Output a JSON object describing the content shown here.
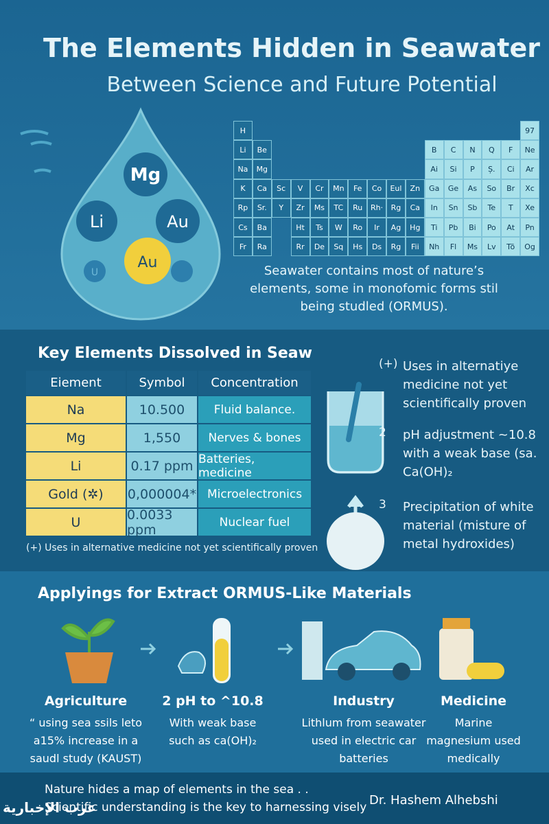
{
  "header": {
    "title": "The Elements Hidden in Seawater",
    "subtitle": "Between Science and Future Potential"
  },
  "drop": {
    "elements": [
      "Mg",
      "Li",
      "Au",
      "Au",
      "U"
    ]
  },
  "periodic_table": {
    "rows": [
      {
        "left": [
          "H"
        ],
        "right": [
          "97"
        ]
      },
      {
        "left": [
          "Li",
          "Be"
        ],
        "right": [
          "B",
          "C",
          "N",
          "Q",
          "F",
          "Ne"
        ]
      },
      {
        "left": [
          "Na",
          "Mg"
        ],
        "right": [
          "Ai",
          "Si",
          "P",
          "Ș.",
          "Ci",
          "Ar"
        ]
      },
      {
        "left": [
          "K",
          "Ca",
          "Sc",
          "V",
          "Cr",
          "Mn",
          "Fe",
          "Co",
          "Eul",
          "Zn",
          "Ga",
          "Ge",
          "As",
          "So",
          "Br",
          "Xc"
        ],
        "right": []
      },
      {
        "left": [
          "Rp",
          "Sr.",
          "Y",
          "Zr",
          "Ms",
          "TC",
          "Ru",
          "Rh·",
          "Rg",
          "Ca",
          "In",
          "Sn",
          "Sb",
          "Te",
          "T",
          "Xe"
        ],
        "right": []
      },
      {
        "left": [
          "Cs",
          "Ba"
        ],
        "right": [
          "Ht",
          "Ts",
          "W",
          "Ro",
          "Ir",
          "Ag",
          "Hg",
          "Ti",
          "Pb",
          "Bi",
          "Po",
          "At",
          "Pn"
        ]
      },
      {
        "left": [
          "Fr",
          "Ra"
        ],
        "right": [
          "Rr",
          "De",
          "Sq",
          "Hs",
          "Ds",
          "Rg",
          "Fii",
          "Nh",
          "Fl",
          "Ms",
          "Lv",
          "Tõ",
          "Og"
        ]
      }
    ]
  },
  "caption": "Seawater contains most of nature’s elements, some in monofomic forms stil being studled (ORMUS).",
  "key_elements": {
    "heading": "Key Elements Dissolved in Seaw",
    "headers": [
      "Eiement",
      "Symbol",
      "Concentration"
    ],
    "rows": [
      [
        "Na",
        "10.500",
        "Fluid balance."
      ],
      [
        "Mg",
        "1,550",
        "Nerves & bones"
      ],
      [
        "Li",
        "0.17 ppm",
        "Batteries, medicine"
      ],
      [
        "Gold (✲)",
        "0,000004*",
        "Microelectronics"
      ],
      [
        "U",
        "0.0033 ppm",
        "Nuclear fuel"
      ]
    ],
    "footnote": "(+)  Uses in alternative medicine not yet scientifically proven"
  },
  "steps": [
    {
      "number": "(+)",
      "text": "Uses in alternatiye medicine not yet scientifically proven"
    },
    {
      "number": "2",
      "text": "pH adjustment ~10.8 with a weak base (sa. Ca(OH)₂"
    },
    {
      "number": "3",
      "text": "Precipitation of white material (misture of metal hydroxides)"
    }
  ],
  "applications": {
    "heading": "Applyings for Extract ORMUS-Like Materials",
    "items": [
      {
        "title": "Agriculture",
        "text": "“ using sea ssils leto a15% increase in a saudl study (KAUST)"
      },
      {
        "title": "2  pH to ^10.8",
        "text": "With weak base such as ca(OH)₂"
      },
      {
        "title": "Industry",
        "text": "Lithlum from seawater used in electric car batteries"
      },
      {
        "title": "Medicine",
        "text": "Marine magnesium used medically"
      }
    ]
  },
  "footer": {
    "line1": "Nature hides a map of elements in the sea . .",
    "line2": "Scientific understanding is the key to harnessing visely",
    "author": "Dr. Hashem Alhebshi",
    "watermark": "عرب الإخبارية"
  }
}
